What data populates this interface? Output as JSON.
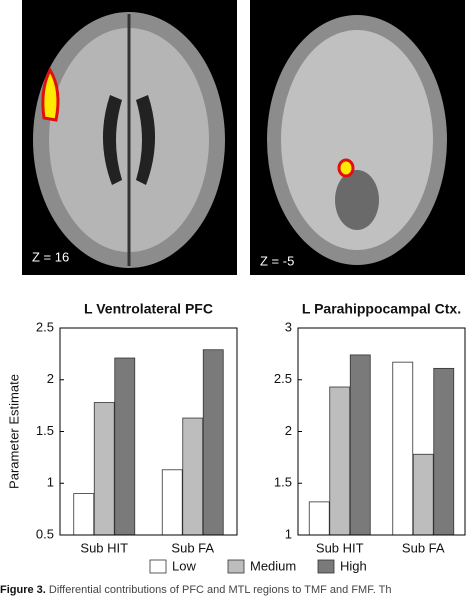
{
  "images": [
    {
      "label": "Z = 16"
    },
    {
      "label": "Z = -5"
    }
  ],
  "chart_data": [
    {
      "type": "bar",
      "title": "L Ventrolateral PFC",
      "y_label": "Parameter Estimate",
      "categories": [
        "Sub HIT",
        "Sub FA"
      ],
      "series": [
        {
          "name": "Low",
          "color": "#ffffff",
          "values": [
            0.9,
            1.13
          ]
        },
        {
          "name": "Medium",
          "color": "#bdbdbd",
          "values": [
            1.78,
            1.63
          ]
        },
        {
          "name": "High",
          "color": "#7a7a7a",
          "values": [
            2.21,
            2.29
          ]
        }
      ],
      "ylim": [
        0.5,
        2.5
      ],
      "yticks": [
        0.5,
        1,
        1.5,
        2,
        2.5
      ]
    },
    {
      "type": "bar",
      "title": "L Parahippocampal Ctx.",
      "categories": [
        "Sub HIT",
        "Sub FA"
      ],
      "series": [
        {
          "name": "Low",
          "color": "#ffffff",
          "values": [
            1.32,
            2.67
          ]
        },
        {
          "name": "Medium",
          "color": "#bdbdbd",
          "values": [
            2.43,
            1.78
          ]
        },
        {
          "name": "High",
          "color": "#7a7a7a",
          "values": [
            2.74,
            2.61
          ]
        }
      ],
      "ylim": [
        1,
        3
      ],
      "yticks": [
        1,
        1.5,
        2,
        2.5,
        3
      ]
    }
  ],
  "caption": {
    "label": "Figure 3.",
    "text": "Differential contributions of PFC and MTL regions to TMF and FMF. Th"
  }
}
